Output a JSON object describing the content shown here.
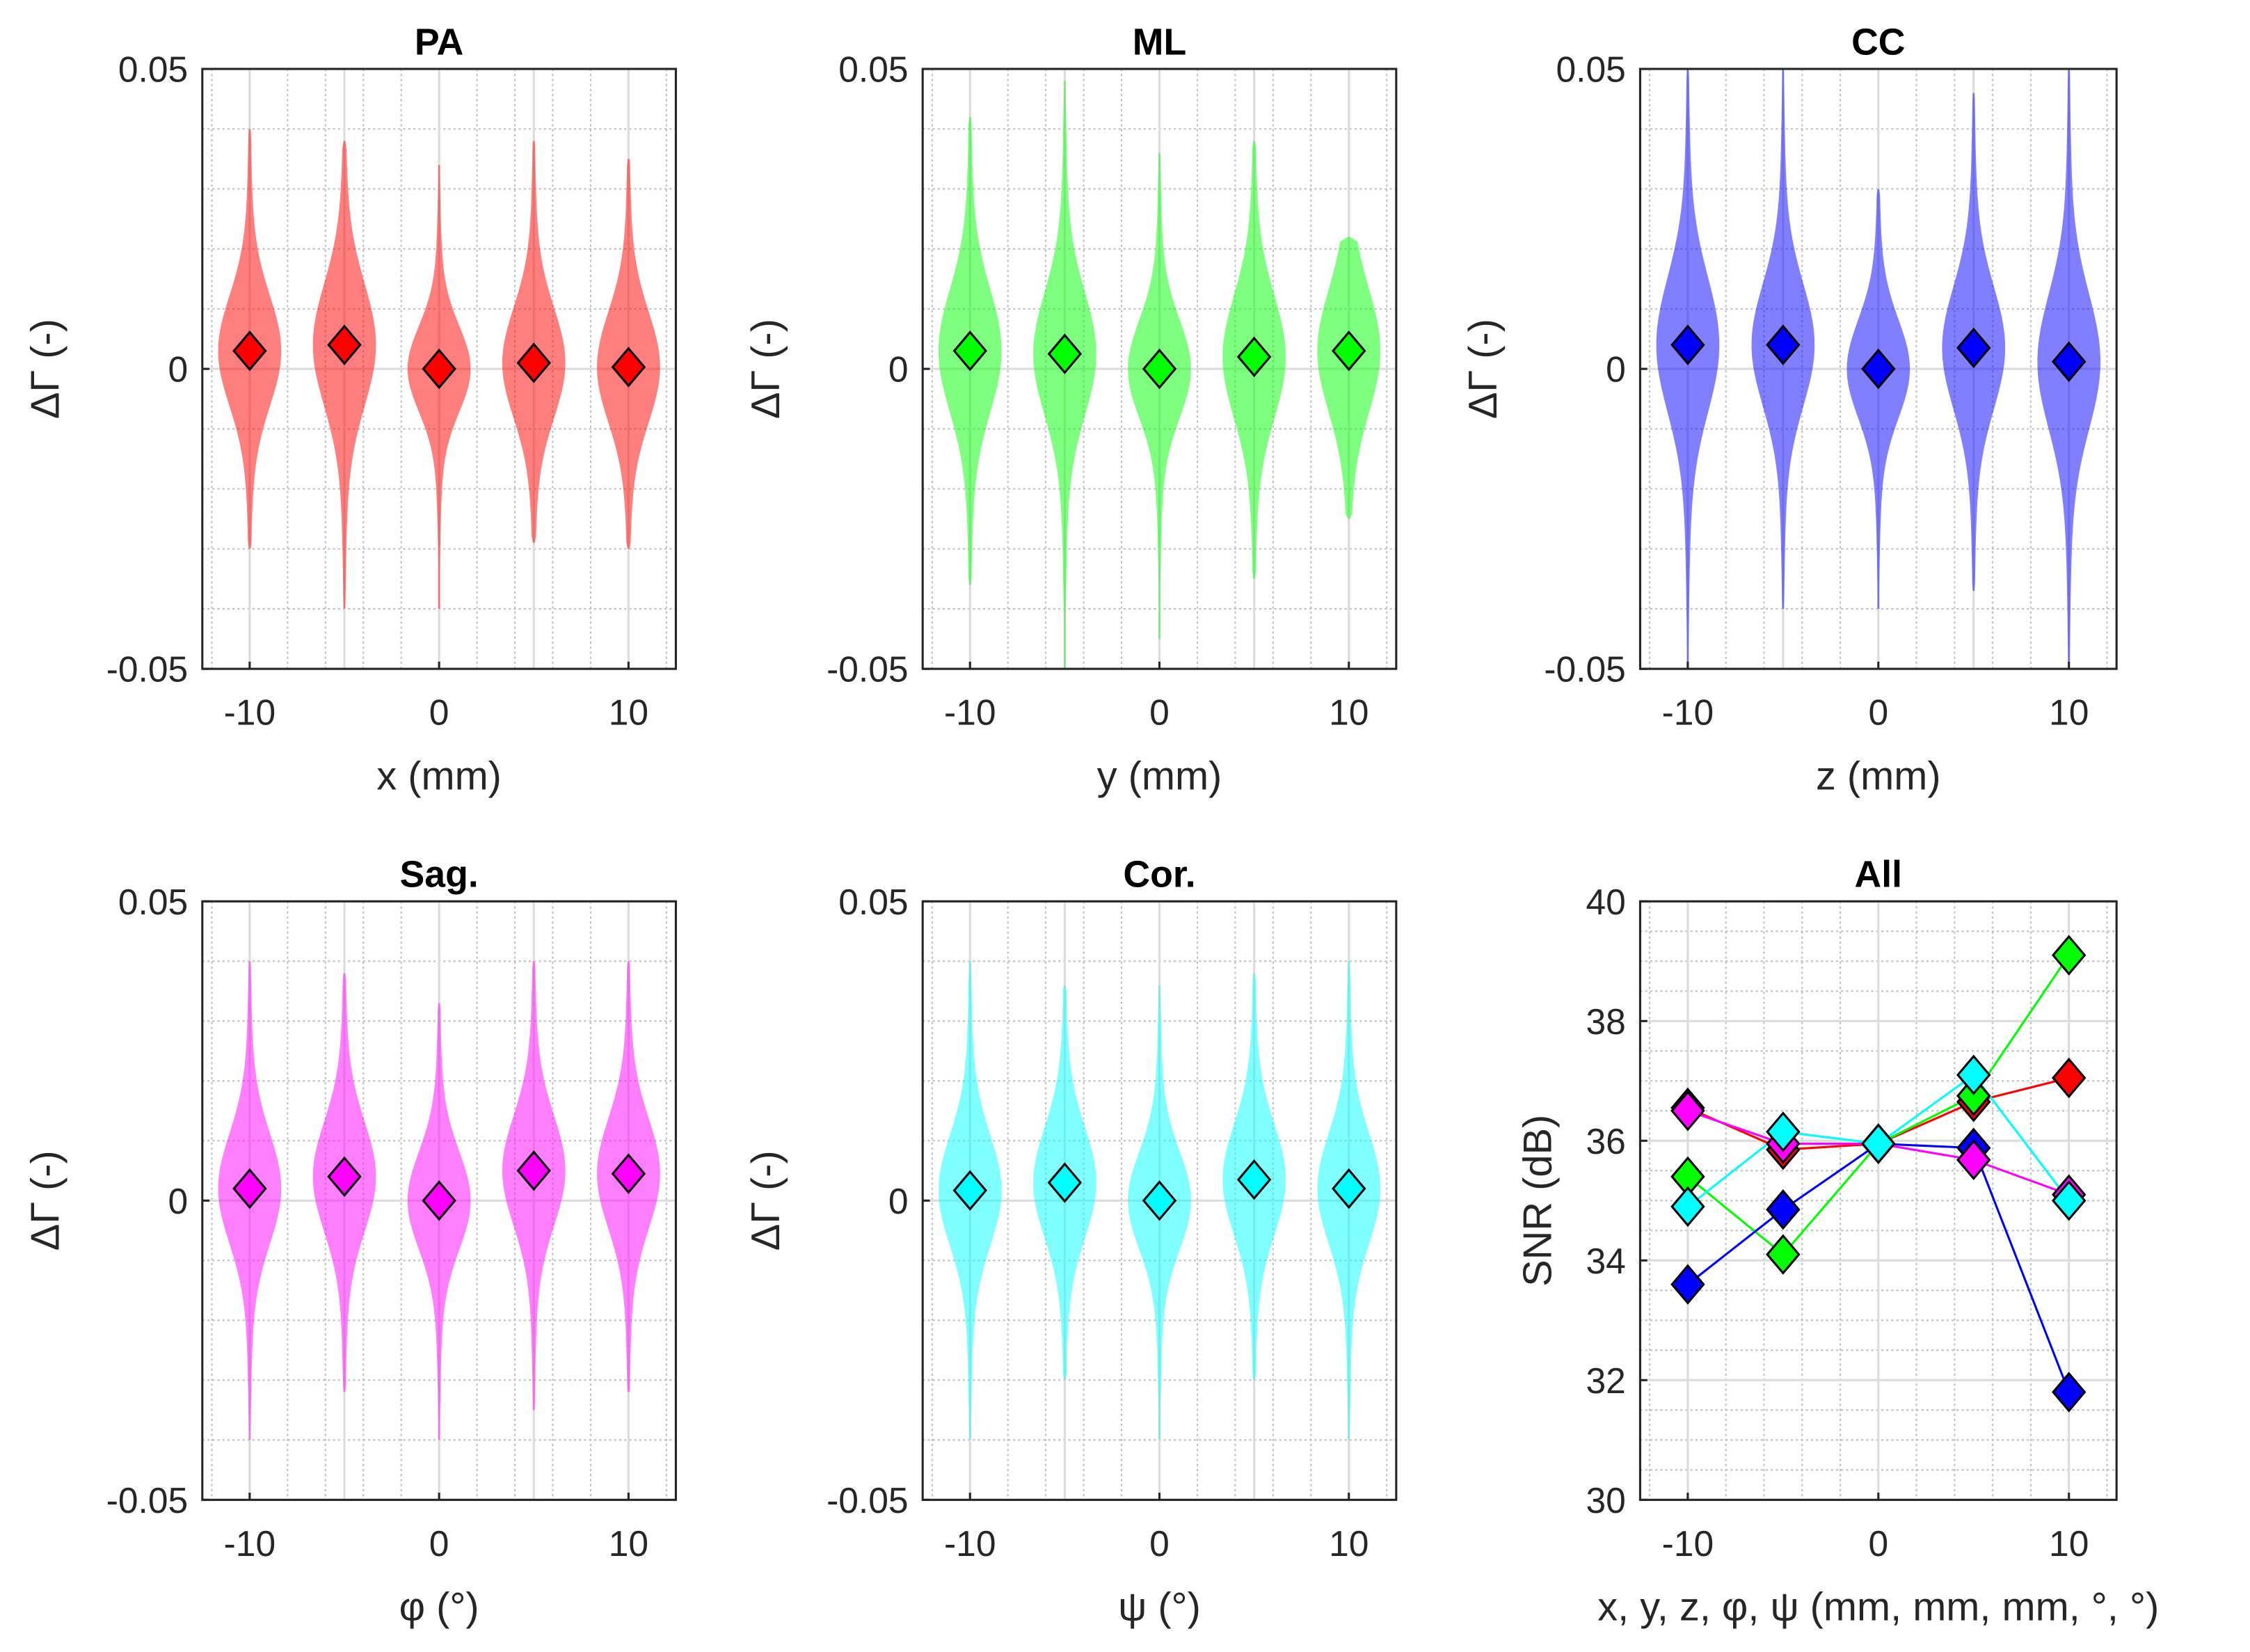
{
  "colors": {
    "PA": "#ff0000",
    "ML": "#00ff00",
    "CC": "#0000ff",
    "Sag": "#ff00ff",
    "Cor": "#00ffff"
  },
  "chart_data": [
    {
      "type": "violin",
      "title": "PA",
      "xlabel": "x (mm)",
      "ylabel": "ΔΓ (-)",
      "x": [
        -10,
        -5,
        0,
        5,
        10
      ],
      "xticks": [
        "-10",
        "0",
        "10"
      ],
      "yticks": [
        "-0.05",
        "0",
        "0.05"
      ],
      "xlim": [
        -12.5,
        12.5
      ],
      "ylim": [
        -0.05,
        0.05
      ],
      "grid": true,
      "means": [
        0.003,
        0.004,
        0.0,
        0.001,
        0.0003
      ],
      "ranges": [
        [
          -0.03,
          0.04
        ],
        [
          -0.04,
          0.038
        ],
        [
          -0.04,
          0.034
        ],
        [
          -0.029,
          0.038
        ],
        [
          -0.03,
          0.035
        ]
      ],
      "spread": [
        0.009,
        0.01,
        0.007,
        0.009,
        0.009
      ],
      "color_key": "PA"
    },
    {
      "type": "violin",
      "title": "ML",
      "xlabel": "y (mm)",
      "ylabel": "ΔΓ (-)",
      "x": [
        -10,
        -5,
        0,
        5,
        10
      ],
      "xticks": [
        "-10",
        "0",
        "10"
      ],
      "yticks": [
        "-0.05",
        "0",
        "0.05"
      ],
      "xlim": [
        -12.5,
        12.5
      ],
      "ylim": [
        -0.05,
        0.05
      ],
      "grid": true,
      "means": [
        0.003,
        0.0025,
        0.0,
        0.002,
        0.003
      ],
      "ranges": [
        [
          -0.036,
          0.042
        ],
        [
          -0.05,
          0.048
        ],
        [
          -0.045,
          0.036
        ],
        [
          -0.035,
          0.038
        ],
        [
          -0.025,
          0.022
        ]
      ],
      "spread": [
        0.01,
        0.01,
        0.008,
        0.01,
        0.01
      ],
      "color_key": "ML"
    },
    {
      "type": "violin",
      "title": "CC",
      "xlabel": "z (mm)",
      "ylabel": "ΔΓ (-)",
      "x": [
        -10,
        -5,
        0,
        5,
        10
      ],
      "xticks": [
        "-10",
        "0",
        "10"
      ],
      "yticks": [
        "-0.05",
        "0",
        "0.05"
      ],
      "xlim": [
        -12.5,
        12.5
      ],
      "ylim": [
        -0.05,
        0.05
      ],
      "grid": true,
      "means": [
        0.004,
        0.004,
        0.0,
        0.0035,
        0.0012
      ],
      "ranges": [
        [
          -0.05,
          0.05
        ],
        [
          -0.04,
          0.05
        ],
        [
          -0.04,
          0.03
        ],
        [
          -0.037,
          0.046
        ],
        [
          -0.05,
          0.05
        ]
      ],
      "spread": [
        0.011,
        0.01,
        0.008,
        0.01,
        0.011
      ],
      "color_key": "CC"
    },
    {
      "type": "violin",
      "title": "Sag.",
      "xlabel": "φ (°)",
      "ylabel": "ΔΓ (-)",
      "x": [
        -10,
        -5,
        0,
        5,
        10
      ],
      "xticks": [
        "-10",
        "0",
        "10"
      ],
      "yticks": [
        "-0.05",
        "0",
        "0.05"
      ],
      "xlim": [
        -12.5,
        12.5
      ],
      "ylim": [
        -0.05,
        0.05
      ],
      "grid": true,
      "means": [
        0.002,
        0.004,
        0.0,
        0.005,
        0.0045
      ],
      "ranges": [
        [
          -0.04,
          0.04
        ],
        [
          -0.032,
          0.038
        ],
        [
          -0.04,
          0.033
        ],
        [
          -0.035,
          0.04
        ],
        [
          -0.032,
          0.04
        ]
      ],
      "spread": [
        0.009,
        0.009,
        0.008,
        0.009,
        0.009
      ],
      "color_key": "Sag"
    },
    {
      "type": "violin",
      "title": "Cor.",
      "xlabel": "ψ (°)",
      "ylabel": "ΔΓ (-)",
      "x": [
        -10,
        -5,
        0,
        5,
        10
      ],
      "xticks": [
        "-10",
        "0",
        "10"
      ],
      "yticks": [
        "-0.05",
        "0",
        "0.05"
      ],
      "xlim": [
        -12.5,
        12.5
      ],
      "ylim": [
        -0.05,
        0.05
      ],
      "grid": true,
      "means": [
        0.0017,
        0.003,
        0.0,
        0.0035,
        0.002
      ],
      "ranges": [
        [
          -0.04,
          0.04
        ],
        [
          -0.03,
          0.036
        ],
        [
          -0.04,
          0.036
        ],
        [
          -0.03,
          0.038
        ],
        [
          -0.04,
          0.04
        ]
      ],
      "spread": [
        0.009,
        0.009,
        0.008,
        0.009,
        0.009
      ],
      "color_key": "Cor"
    },
    {
      "type": "line",
      "title": "All",
      "xlabel": "x, y, z, φ, ψ (mm, mm, mm, °, °)",
      "ylabel": "SNR (dB)",
      "x": [
        -10,
        -5,
        0,
        5,
        10
      ],
      "xticks": [
        "-10",
        "0",
        "10"
      ],
      "yticks": [
        "30",
        "32",
        "34",
        "36",
        "38",
        "40"
      ],
      "xlim": [
        -12.5,
        12.5
      ],
      "ylim": [
        30,
        40
      ],
      "grid": true,
      "series": [
        {
          "name": "PA",
          "color_key": "PA",
          "values": [
            36.55,
            35.85,
            35.95,
            36.65,
            37.05
          ]
        },
        {
          "name": "ML",
          "color_key": "ML",
          "values": [
            35.4,
            34.1,
            35.95,
            36.75,
            39.1
          ]
        },
        {
          "name": "CC",
          "color_key": "CC",
          "values": [
            33.6,
            34.85,
            35.95,
            35.88,
            31.8
          ]
        },
        {
          "name": "Sag",
          "color_key": "Sag",
          "values": [
            36.5,
            35.95,
            35.95,
            35.68,
            35.1
          ]
        },
        {
          "name": "Cor",
          "color_key": "Cor",
          "values": [
            34.9,
            36.15,
            35.95,
            37.1,
            35.0
          ]
        }
      ]
    }
  ]
}
